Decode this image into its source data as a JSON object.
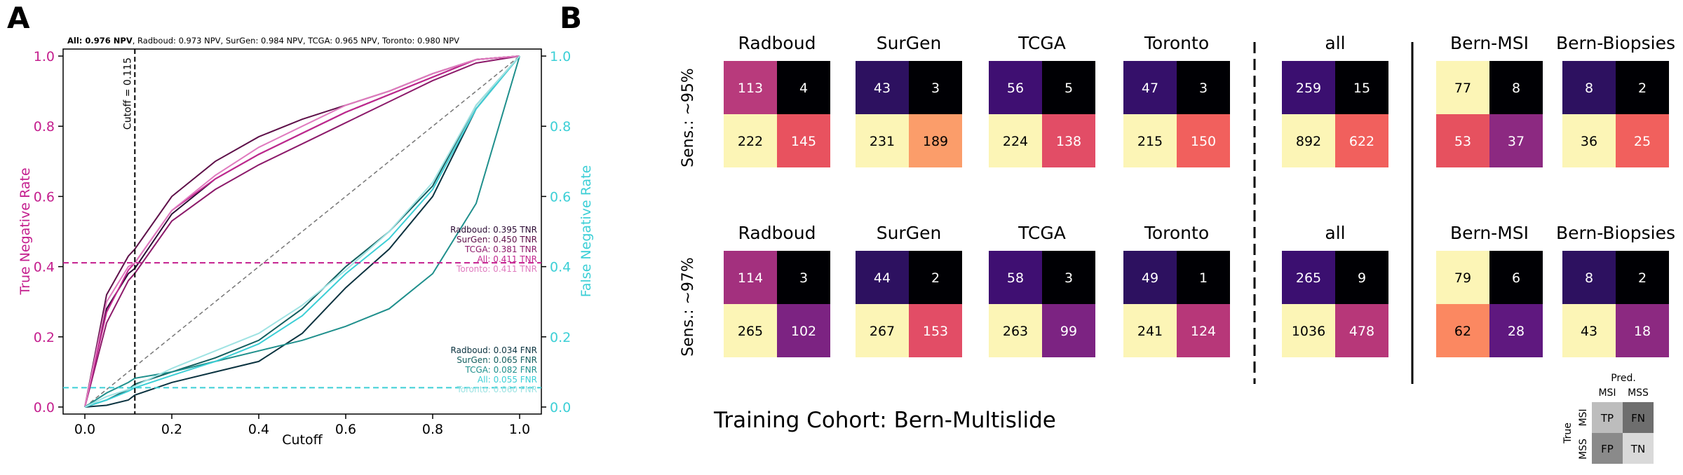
{
  "panel_a": {
    "letter": "A",
    "npv_header": {
      "all": "All: 0.976 NPV",
      "rest": ", Radboud: 0.973 NPV, SurGen: 0.984 NPV, TCGA: 0.965 NPV, Toronto: 0.980 NPV"
    },
    "ylabel_left": "True Negative Rate",
    "ylabel_right": "False Negative Rate",
    "xlabel": "Cutoff",
    "cutoff_label": "Cutoff = 0.115",
    "x_ticks": [
      "0.0",
      "0.2",
      "0.4",
      "0.6",
      "0.8",
      "1.0"
    ],
    "y_ticks": [
      "0.0",
      "0.2",
      "0.4",
      "0.6",
      "0.8",
      "1.0"
    ],
    "tnr_labels": [
      {
        "text": "Radboud: 0.395 TNR",
        "color": "#2a0a33"
      },
      {
        "text": "SurGen: 0.450 TNR",
        "color": "#5e1049"
      },
      {
        "text": "TCGA: 0.381 TNR",
        "color": "#8c1a6a"
      },
      {
        "text": "All: 0.411 TNR",
        "color": "#c2268f"
      },
      {
        "text": "Toronto: 0.411 TNR",
        "color": "#e07bbf"
      }
    ],
    "fnr_labels": [
      {
        "text": "Radboud: 0.034 FNR",
        "color": "#0b3340"
      },
      {
        "text": "SurGen: 0.065 FNR",
        "color": "#135e5e"
      },
      {
        "text": "TCGA: 0.082 FNR",
        "color": "#1f8f8c"
      },
      {
        "text": "All: 0.055 FNR",
        "color": "#3ccfd6"
      },
      {
        "text": "Toronto: 0.060 FNR",
        "color": "#9fe3e3"
      }
    ],
    "colors": {
      "left_axis": "#c41f8e",
      "right_axis": "#3ccfd6",
      "tnr_line": "#c41f8e",
      "fnr_line": "#3ccfd6"
    }
  },
  "panel_b": {
    "letter": "B",
    "row_labels": [
      "Sens.: ~95%",
      "Sens.: ~97%"
    ],
    "training_label": "Training Cohort: Bern-Multislide",
    "matrices": [
      {
        "name": "Radboud",
        "row": 0,
        "col": 0,
        "values": [
          113,
          4,
          222,
          145
        ],
        "colors": [
          "#b83a7c",
          "#000004",
          "#fcf5b6",
          "#e8525f"
        ],
        "text": [
          "#fff",
          "#fff",
          "#000",
          "#fff"
        ]
      },
      {
        "name": "SurGen",
        "row": 0,
        "col": 1,
        "values": [
          43,
          3,
          231,
          189
        ],
        "colors": [
          "#2d1160",
          "#000004",
          "#fcf5b6",
          "#fb9d6a"
        ],
        "text": [
          "#fff",
          "#fff",
          "#000",
          "#000"
        ]
      },
      {
        "name": "TCGA",
        "row": 0,
        "col": 2,
        "values": [
          56,
          5,
          224,
          138
        ],
        "colors": [
          "#3f0f72",
          "#000004",
          "#fcf5b6",
          "#e24d66"
        ],
        "text": [
          "#fff",
          "#fff",
          "#000",
          "#fff"
        ]
      },
      {
        "name": "Toronto",
        "row": 0,
        "col": 3,
        "values": [
          47,
          3,
          215,
          150
        ],
        "colors": [
          "#35106a",
          "#000004",
          "#fcf5b6",
          "#f1605d"
        ],
        "text": [
          "#fff",
          "#fff",
          "#000",
          "#fff"
        ]
      },
      {
        "name": "all",
        "row": 0,
        "col": 4,
        "values": [
          259,
          15,
          892,
          622
        ],
        "colors": [
          "#3b0f70",
          "#000004",
          "#fcf5b6",
          "#f1605d"
        ],
        "text": [
          "#fff",
          "#fff",
          "#000",
          "#fff"
        ]
      },
      {
        "name": "Bern-MSI",
        "row": 0,
        "col": 5,
        "values": [
          77,
          8,
          53,
          37
        ],
        "colors": [
          "#fcf5b6",
          "#000004",
          "#e6515f",
          "#8c2981"
        ],
        "text": [
          "#000",
          "#fff",
          "#fff",
          "#fff"
        ]
      },
      {
        "name": "Bern-Biopsies",
        "row": 0,
        "col": 6,
        "values": [
          8,
          2,
          36,
          25
        ],
        "colors": [
          "#2d1160",
          "#000004",
          "#fcf5b6",
          "#f1605d"
        ],
        "text": [
          "#fff",
          "#fff",
          "#000",
          "#fff"
        ]
      },
      {
        "name": "Radboud",
        "row": 1,
        "col": 0,
        "values": [
          114,
          3,
          265,
          102
        ],
        "colors": [
          "#a3307e",
          "#000004",
          "#fcf5b6",
          "#7c2382"
        ],
        "text": [
          "#fff",
          "#fff",
          "#000",
          "#fff"
        ]
      },
      {
        "name": "SurGen",
        "row": 1,
        "col": 1,
        "values": [
          44,
          2,
          267,
          153
        ],
        "colors": [
          "#2d1160",
          "#000004",
          "#fcf5b6",
          "#e24d66"
        ],
        "text": [
          "#fff",
          "#fff",
          "#000",
          "#fff"
        ]
      },
      {
        "name": "TCGA",
        "row": 1,
        "col": 2,
        "values": [
          58,
          3,
          263,
          99
        ],
        "colors": [
          "#3f0f72",
          "#000004",
          "#fcf5b6",
          "#7c2382"
        ],
        "text": [
          "#fff",
          "#fff",
          "#000",
          "#fff"
        ]
      },
      {
        "name": "Toronto",
        "row": 1,
        "col": 3,
        "values": [
          49,
          1,
          241,
          124
        ],
        "colors": [
          "#2d1160",
          "#000004",
          "#fcf5b6",
          "#b73779"
        ],
        "text": [
          "#fff",
          "#fff",
          "#000",
          "#fff"
        ]
      },
      {
        "name": "all",
        "row": 1,
        "col": 4,
        "values": [
          265,
          9,
          1036,
          478
        ],
        "colors": [
          "#3b0f70",
          "#000004",
          "#fcf5b6",
          "#b73779"
        ],
        "text": [
          "#fff",
          "#fff",
          "#000",
          "#fff"
        ]
      },
      {
        "name": "Bern-MSI",
        "row": 1,
        "col": 5,
        "values": [
          79,
          6,
          62,
          28
        ],
        "colors": [
          "#fcf5b6",
          "#000004",
          "#fb8861",
          "#5f187f"
        ],
        "text": [
          "#000",
          "#fff",
          "#000",
          "#fff"
        ]
      },
      {
        "name": "Bern-Biopsies",
        "row": 1,
        "col": 6,
        "values": [
          8,
          2,
          43,
          18
        ],
        "colors": [
          "#2d1160",
          "#000004",
          "#fcf5b6",
          "#8c2981"
        ],
        "text": [
          "#fff",
          "#fff",
          "#000",
          "#fff"
        ]
      }
    ],
    "legend": {
      "pred": "Pred.",
      "true": "True",
      "msi": "MSI",
      "mss": "MSS",
      "cells": [
        "TP",
        "FN",
        "FP",
        "TN"
      ],
      "colors": [
        "#bdbdbd",
        "#6e6e6e",
        "#8a8a8a",
        "#d9d9d9"
      ]
    }
  },
  "chart_data": {
    "type": "line",
    "title": "All: 0.976 NPV, Radboud: 0.973 NPV, SurGen: 0.984 NPV, TCGA: 0.965 NPV, Toronto: 0.980 NPV",
    "xlabel": "Cutoff",
    "ylabel": "True Negative Rate",
    "ylabel_right": "False Negative Rate",
    "xlim": [
      -0.05,
      1.05
    ],
    "ylim": [
      -0.02,
      1.02
    ],
    "cutoff": 0.115,
    "tnr_threshold": 0.411,
    "fnr_threshold": 0.055,
    "grid": false,
    "series": [
      {
        "name": "Radboud",
        "metric": "TNR",
        "color": "#2a0a33",
        "x": [
          0,
          0.05,
          0.1,
          0.115,
          0.2,
          0.3,
          0.4,
          0.5,
          0.6,
          0.7,
          0.8,
          0.9,
          1.0
        ],
        "y": [
          0,
          0.28,
          0.38,
          0.395,
          0.55,
          0.65,
          0.72,
          0.78,
          0.84,
          0.89,
          0.94,
          0.99,
          1.0
        ]
      },
      {
        "name": "SurGen",
        "metric": "TNR",
        "color": "#5e1049",
        "x": [
          0,
          0.05,
          0.1,
          0.115,
          0.2,
          0.3,
          0.4,
          0.5,
          0.6,
          0.7,
          0.8,
          0.9,
          1.0
        ],
        "y": [
          0,
          0.32,
          0.43,
          0.45,
          0.6,
          0.7,
          0.77,
          0.82,
          0.86,
          0.9,
          0.95,
          0.99,
          1.0
        ]
      },
      {
        "name": "TCGA",
        "metric": "TNR",
        "color": "#8c1a6a",
        "x": [
          0,
          0.05,
          0.1,
          0.115,
          0.2,
          0.3,
          0.4,
          0.5,
          0.6,
          0.7,
          0.8,
          0.9,
          1.0
        ],
        "y": [
          0,
          0.24,
          0.36,
          0.381,
          0.53,
          0.62,
          0.69,
          0.75,
          0.81,
          0.87,
          0.93,
          0.98,
          1.0
        ]
      },
      {
        "name": "All",
        "metric": "TNR",
        "color": "#c2268f",
        "x": [
          0,
          0.05,
          0.1,
          0.115,
          0.2,
          0.3,
          0.4,
          0.5,
          0.6,
          0.7,
          0.8,
          0.9,
          1.0
        ],
        "y": [
          0,
          0.27,
          0.39,
          0.411,
          0.56,
          0.65,
          0.72,
          0.78,
          0.84,
          0.89,
          0.94,
          0.99,
          1.0
        ]
      },
      {
        "name": "Toronto",
        "metric": "TNR",
        "color": "#e07bbf",
        "x": [
          0,
          0.05,
          0.1,
          0.115,
          0.2,
          0.3,
          0.4,
          0.5,
          0.6,
          0.7,
          0.8,
          0.9,
          1.0
        ],
        "y": [
          0,
          0.3,
          0.4,
          0.411,
          0.56,
          0.66,
          0.74,
          0.8,
          0.86,
          0.9,
          0.95,
          0.99,
          1.0
        ]
      },
      {
        "name": "Radboud",
        "metric": "FNR",
        "color": "#0b3340",
        "x": [
          0,
          0.05,
          0.1,
          0.115,
          0.2,
          0.3,
          0.4,
          0.5,
          0.6,
          0.7,
          0.8,
          0.9,
          1.0
        ],
        "y": [
          0,
          0.005,
          0.02,
          0.034,
          0.07,
          0.1,
          0.13,
          0.21,
          0.34,
          0.45,
          0.6,
          0.85,
          1.0
        ]
      },
      {
        "name": "SurGen",
        "metric": "FNR",
        "color": "#135e5e",
        "x": [
          0,
          0.05,
          0.1,
          0.115,
          0.2,
          0.3,
          0.4,
          0.5,
          0.6,
          0.7,
          0.8,
          0.9,
          1.0
        ],
        "y": [
          0,
          0.02,
          0.05,
          0.065,
          0.1,
          0.14,
          0.19,
          0.28,
          0.4,
          0.5,
          0.63,
          0.86,
          1.0
        ]
      },
      {
        "name": "TCGA",
        "metric": "FNR",
        "color": "#1f8f8c",
        "x": [
          0,
          0.05,
          0.1,
          0.115,
          0.2,
          0.3,
          0.4,
          0.5,
          0.6,
          0.7,
          0.8,
          0.9,
          1.0
        ],
        "y": [
          0,
          0.04,
          0.07,
          0.082,
          0.1,
          0.13,
          0.16,
          0.19,
          0.23,
          0.28,
          0.38,
          0.58,
          1.0
        ]
      },
      {
        "name": "All",
        "metric": "FNR",
        "color": "#3ccfd6",
        "x": [
          0,
          0.05,
          0.1,
          0.115,
          0.2,
          0.3,
          0.4,
          0.5,
          0.6,
          0.7,
          0.8,
          0.9,
          1.0
        ],
        "y": [
          0,
          0.02,
          0.045,
          0.055,
          0.09,
          0.13,
          0.18,
          0.26,
          0.38,
          0.48,
          0.62,
          0.85,
          1.0
        ]
      },
      {
        "name": "Toronto",
        "metric": "FNR",
        "color": "#9fe3e3",
        "x": [
          0,
          0.05,
          0.1,
          0.115,
          0.2,
          0.3,
          0.4,
          0.5,
          0.6,
          0.7,
          0.8,
          0.9,
          1.0
        ],
        "y": [
          0,
          0.03,
          0.05,
          0.06,
          0.11,
          0.16,
          0.21,
          0.29,
          0.39,
          0.5,
          0.64,
          0.86,
          1.0
        ]
      }
    ]
  }
}
